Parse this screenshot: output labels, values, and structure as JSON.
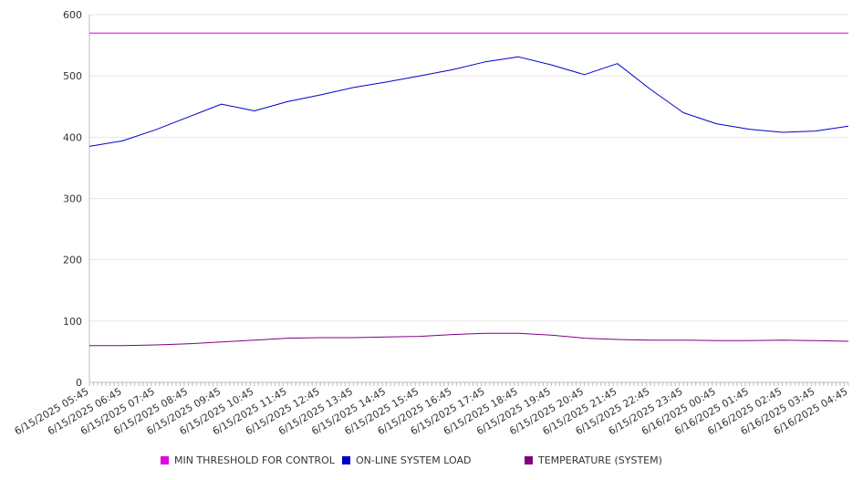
{
  "chart_data": {
    "type": "line",
    "title": "",
    "xlabel": "",
    "ylabel": "",
    "ylim": [
      0,
      600
    ],
    "yticks": [
      "0",
      "100",
      "200",
      "300",
      "400",
      "500",
      "600"
    ],
    "grid": true,
    "legend_position": "bottom",
    "x": [
      "6/15/2025 05:45",
      "6/15/2025 06:45",
      "6/15/2025 07:45",
      "6/15/2025 08:45",
      "6/15/2025 09:45",
      "6/15/2025 10:45",
      "6/15/2025 11:45",
      "6/15/2025 12:45",
      "6/15/2025 13:45",
      "6/15/2025 14:45",
      "6/15/2025 15:45",
      "6/15/2025 16:45",
      "6/15/2025 17:45",
      "6/15/2025 18:45",
      "6/15/2025 19:45",
      "6/15/2025 20:45",
      "6/15/2025 21:45",
      "6/15/2025 22:45",
      "6/15/2025 23:45",
      "6/16/2025 00:45",
      "6/16/2025 01:45",
      "6/16/2025 02:45",
      "6/16/2025 03:45",
      "6/16/2025 04:45"
    ],
    "series": [
      {
        "name": "MIN THRESHOLD FOR CONTROL",
        "color": "#e000e0",
        "values": [
          570,
          570,
          570,
          570,
          570,
          570,
          570,
          570,
          570,
          570,
          570,
          570,
          570,
          570,
          570,
          570,
          570,
          570,
          570,
          570,
          570,
          570,
          570,
          570
        ]
      },
      {
        "name": "ON-LINE SYSTEM LOAD",
        "color": "#0000cc",
        "values": [
          385,
          394,
          412,
          433,
          454,
          443,
          458,
          469,
          481,
          490,
          500,
          510,
          523,
          531,
          518,
          502,
          520,
          478,
          440,
          422,
          413,
          408,
          410,
          418
        ]
      },
      {
        "name": "TEMPERATURE (SYSTEM)",
        "color": "#800080",
        "values": [
          60,
          60,
          61,
          63,
          66,
          69,
          72,
          73,
          73,
          74,
          75,
          78,
          80,
          80,
          77,
          72,
          70,
          69,
          69,
          68,
          68,
          69,
          68,
          67
        ]
      }
    ]
  }
}
